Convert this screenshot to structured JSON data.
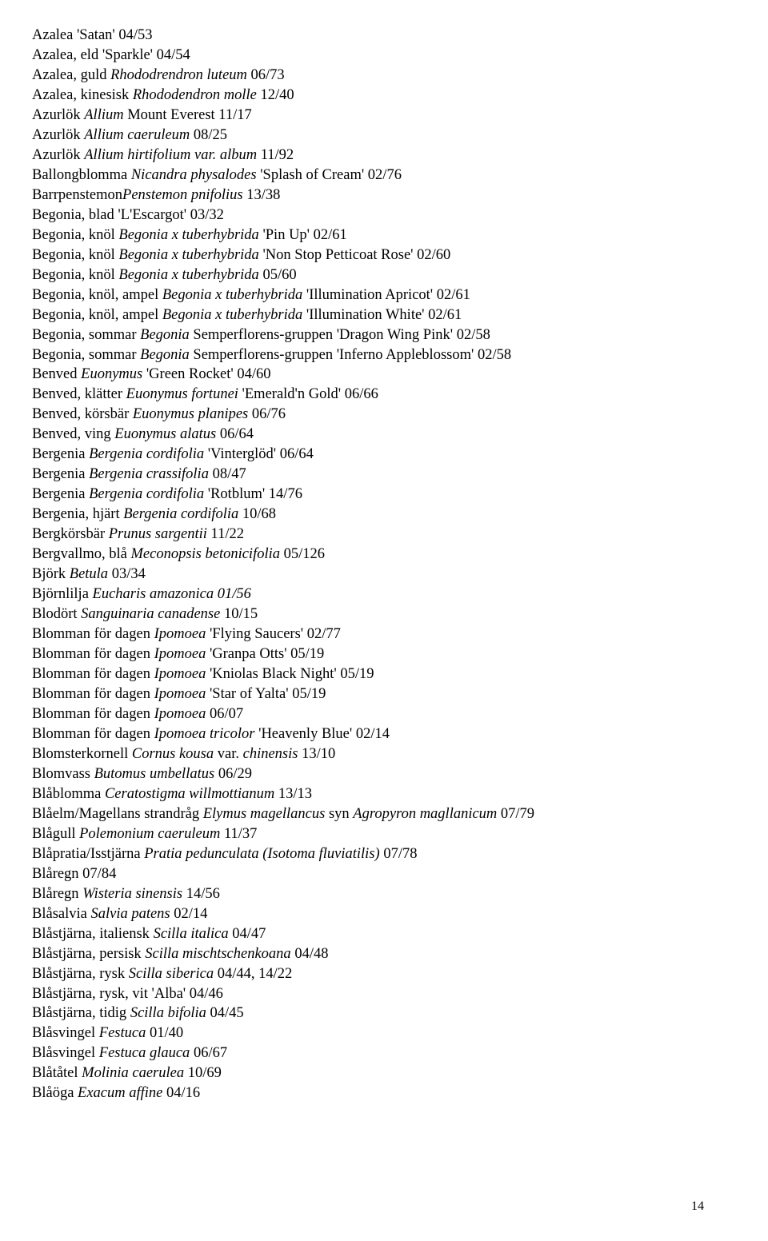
{
  "entries": [
    {
      "parts": [
        {
          "t": "Azalea 'Satan' 04/53"
        }
      ]
    },
    {
      "parts": [
        {
          "t": "Azalea, eld 'Sparkle' 04/54"
        }
      ]
    },
    {
      "parts": [
        {
          "t": "Azalea, guld "
        },
        {
          "t": "Rhododrendron luteum",
          "i": true
        },
        {
          "t": " 06/73"
        }
      ]
    },
    {
      "parts": [
        {
          "t": "Azalea, kinesisk "
        },
        {
          "t": "Rhododendron molle",
          "i": true
        },
        {
          "t": " 12/40"
        }
      ]
    },
    {
      "parts": [
        {
          "t": "Azurlök "
        },
        {
          "t": "Allium",
          "i": true
        },
        {
          "t": " Mount Everest 11/17"
        }
      ]
    },
    {
      "parts": [
        {
          "t": "Azurlök "
        },
        {
          "t": "Allium caeruleum",
          "i": true
        },
        {
          "t": " 08/25"
        }
      ]
    },
    {
      "parts": [
        {
          "t": "Azurlök "
        },
        {
          "t": "Allium hirtifolium var. album",
          "i": true
        },
        {
          "t": " 11/92"
        }
      ]
    },
    {
      "parts": [
        {
          "t": "Ballongblomma "
        },
        {
          "t": "Nicandra physalodes",
          "i": true
        },
        {
          "t": " 'Splash of Cream' 02/76"
        }
      ]
    },
    {
      "parts": [
        {
          "t": "Barrpenstemon"
        },
        {
          "t": "Penstemon pnifolius",
          "i": true
        },
        {
          "t": " 13/38"
        }
      ]
    },
    {
      "parts": [
        {
          "t": "Begonia, blad 'L'Escargot' 03/32"
        }
      ]
    },
    {
      "parts": [
        {
          "t": "Begonia, knöl  "
        },
        {
          "t": "Begonia x tuberhybrida",
          "i": true
        },
        {
          "t": " 'Pin Up' 02/61"
        }
      ]
    },
    {
      "parts": [
        {
          "t": "Begonia, knöl "
        },
        {
          "t": "Begonia x tuberhybrida",
          "i": true
        },
        {
          "t": "  'Non Stop Petticoat Rose' 02/60"
        }
      ]
    },
    {
      "parts": [
        {
          "t": "Begonia, knöl "
        },
        {
          "t": "Begonia x tuberhybrida",
          "i": true
        },
        {
          "t": " 05/60"
        }
      ]
    },
    {
      "parts": [
        {
          "t": "Begonia, knöl, ampel  "
        },
        {
          "t": "Begonia x tuberhybrida",
          "i": true
        },
        {
          "t": " 'Illumination Apricot' 02/61"
        }
      ]
    },
    {
      "parts": [
        {
          "t": "Begonia, knöl, ampel  "
        },
        {
          "t": "Begonia x tuberhybrida",
          "i": true
        },
        {
          "t": " 'Illumination White' 02/61"
        }
      ]
    },
    {
      "parts": [
        {
          "t": "Begonia, sommar "
        },
        {
          "t": "Begonia",
          "i": true
        },
        {
          "t": " Semperflorens-gruppen 'Dragon Wing Pink' 02/58"
        }
      ]
    },
    {
      "parts": [
        {
          "t": "Begonia, sommar "
        },
        {
          "t": "Begonia",
          "i": true
        },
        {
          "t": " Semperflorens-gruppen 'Inferno Appleblossom' 02/58"
        }
      ]
    },
    {
      "parts": [
        {
          "t": "Benved "
        },
        {
          "t": "Euonymus",
          "i": true
        },
        {
          "t": " 'Green Rocket' 04/60"
        }
      ]
    },
    {
      "parts": [
        {
          "t": "Benved, klätter  "
        },
        {
          "t": "Euonymus fortunei",
          "i": true
        },
        {
          "t": " 'Emerald'n Gold' 06/66"
        }
      ]
    },
    {
      "parts": [
        {
          "t": "Benved, körsbär "
        },
        {
          "t": "Euonymus planipes",
          "i": true
        },
        {
          "t": " 06/76"
        }
      ]
    },
    {
      "parts": [
        {
          "t": "Benved, ving "
        },
        {
          "t": "Euonymus alatus",
          "i": true
        },
        {
          "t": " 06/64"
        }
      ]
    },
    {
      "parts": [
        {
          "t": "Bergenia "
        },
        {
          "t": "Bergenia cordifolia",
          "i": true
        },
        {
          "t": " 'Vinterglöd' 06/64"
        }
      ]
    },
    {
      "parts": [
        {
          "t": "Bergenia "
        },
        {
          "t": "Bergenia crassifolia",
          "i": true
        },
        {
          "t": " 08/47"
        }
      ]
    },
    {
      "parts": [
        {
          "t": "Bergenia "
        },
        {
          "t": "Bergenia cordifolia",
          "i": true
        },
        {
          "t": " 'Rotblum' 14/76"
        }
      ]
    },
    {
      "parts": [
        {
          "t": "Bergenia, hjärt "
        },
        {
          "t": "Bergenia cordifolia",
          "i": true
        },
        {
          "t": " 10/68"
        }
      ]
    },
    {
      "parts": [
        {
          "t": "Bergkörsbär "
        },
        {
          "t": "Prunus sargentii",
          "i": true
        },
        {
          "t": " 11/22"
        }
      ]
    },
    {
      "parts": [
        {
          "t": "Bergvallmo, blå "
        },
        {
          "t": "Meconopsis betonicifolia",
          "i": true
        },
        {
          "t": " 05/126"
        }
      ]
    },
    {
      "parts": [
        {
          "t": "Björk "
        },
        {
          "t": "Betula",
          "i": true
        },
        {
          "t": " 03/34"
        }
      ]
    },
    {
      "parts": [
        {
          "t": "Björnlilja "
        },
        {
          "t": "Eucharis amazonica 01/56",
          "i": true
        }
      ]
    },
    {
      "parts": [
        {
          "t": "Blodört  "
        },
        {
          "t": "Sanguinaria canadense",
          "i": true
        },
        {
          "t": " 10/15"
        }
      ]
    },
    {
      "parts": [
        {
          "t": "Blomman för dagen "
        },
        {
          "t": "Ipomoea",
          "i": true
        },
        {
          "t": " 'Flying Saucers' 02/77"
        }
      ]
    },
    {
      "parts": [
        {
          "t": "Blomman för dagen "
        },
        {
          "t": "Ipomoea",
          "i": true
        },
        {
          "t": " 'Granpa Otts' 05/19"
        }
      ]
    },
    {
      "parts": [
        {
          "t": "Blomman för dagen "
        },
        {
          "t": "Ipomoea",
          "i": true
        },
        {
          "t": " 'Kniolas Black Night' 05/19"
        }
      ]
    },
    {
      "parts": [
        {
          "t": "Blomman för dagen "
        },
        {
          "t": "Ipomoea",
          "i": true
        },
        {
          "t": " 'Star of Yalta' 05/19"
        }
      ]
    },
    {
      "parts": [
        {
          "t": "Blomman för dagen "
        },
        {
          "t": "Ipomoea",
          "i": true
        },
        {
          "t": " 06/07"
        }
      ]
    },
    {
      "parts": [
        {
          "t": "Blomman för dagen "
        },
        {
          "t": "Ipomoea tricolor",
          "i": true
        },
        {
          "t": " 'Heavenly Blue' 02/14"
        }
      ]
    },
    {
      "parts": [
        {
          "t": "Blomsterkornell "
        },
        {
          "t": "Cornus kousa",
          "i": true
        },
        {
          "t": " var. "
        },
        {
          "t": " chinensis",
          "i": true
        },
        {
          "t": " 13/10"
        }
      ]
    },
    {
      "parts": [
        {
          "t": "Blomvass "
        },
        {
          "t": "Butomus umbellatus",
          "i": true
        },
        {
          "t": " 06/29"
        }
      ]
    },
    {
      "parts": [
        {
          "t": "Blåblomma "
        },
        {
          "t": "Ceratostigma willmottianum",
          "i": true
        },
        {
          "t": " 13/13"
        }
      ]
    },
    {
      "parts": [
        {
          "t": "Blåelm/Magellans strandråg "
        },
        {
          "t": "Elymus magellancus",
          "i": true
        },
        {
          "t": " syn "
        },
        {
          "t": "Agropyron magllanicum",
          "i": true
        },
        {
          "t": " 07/79"
        }
      ]
    },
    {
      "parts": [
        {
          "t": "Blågull "
        },
        {
          "t": "Polemonium caeruleum",
          "i": true
        },
        {
          "t": " 11/37"
        }
      ]
    },
    {
      "parts": [
        {
          "t": "Blåpratia/Isstjärna "
        },
        {
          "t": "Pratia pedunculata (Isotoma fluviatilis)",
          "i": true
        },
        {
          "t": " 07/78"
        }
      ]
    },
    {
      "parts": [
        {
          "t": "Blåregn 07/84"
        }
      ]
    },
    {
      "parts": [
        {
          "t": "Blåregn "
        },
        {
          "t": "Wisteria sinensis",
          "i": true
        },
        {
          "t": " 14/56"
        }
      ]
    },
    {
      "parts": [
        {
          "t": "Blåsalvia "
        },
        {
          "t": "Salvia patens",
          "i": true
        },
        {
          "t": " 02/14"
        }
      ]
    },
    {
      "parts": [
        {
          "t": "Blåstjärna, italiensk  "
        },
        {
          "t": "Scilla italica",
          "i": true
        },
        {
          "t": " 04/47"
        }
      ]
    },
    {
      "parts": [
        {
          "t": "Blåstjärna, persisk "
        },
        {
          "t": "Scilla mischtschenkoana",
          "i": true
        },
        {
          "t": " 04/48"
        }
      ]
    },
    {
      "parts": [
        {
          "t": "Blåstjärna, rysk "
        },
        {
          "t": "Scilla siberica",
          "i": true
        },
        {
          "t": " 04/44, 14/22"
        }
      ]
    },
    {
      "parts": [
        {
          "t": "Blåstjärna, rysk, vit 'Alba' 04/46"
        }
      ]
    },
    {
      "parts": [
        {
          "t": "Blåstjärna, tidig "
        },
        {
          "t": "Scilla bifolia",
          "i": true
        },
        {
          "t": " 04/45"
        }
      ]
    },
    {
      "parts": [
        {
          "t": "Blåsvingel "
        },
        {
          "t": "Festuca",
          "i": true
        },
        {
          "t": " 01/40"
        }
      ]
    },
    {
      "parts": [
        {
          "t": "Blåsvingel "
        },
        {
          "t": "Festuca glauca",
          "i": true
        },
        {
          "t": " 06/67"
        }
      ]
    },
    {
      "parts": [
        {
          "t": "Blåtåtel  "
        },
        {
          "t": "Molinia caerulea",
          "i": true
        },
        {
          "t": " 10/69"
        }
      ]
    },
    {
      "parts": [
        {
          "t": "Blåöga "
        },
        {
          "t": "Exacum affine",
          "i": true
        },
        {
          "t": " 04/16"
        }
      ]
    }
  ],
  "page_number": "14"
}
